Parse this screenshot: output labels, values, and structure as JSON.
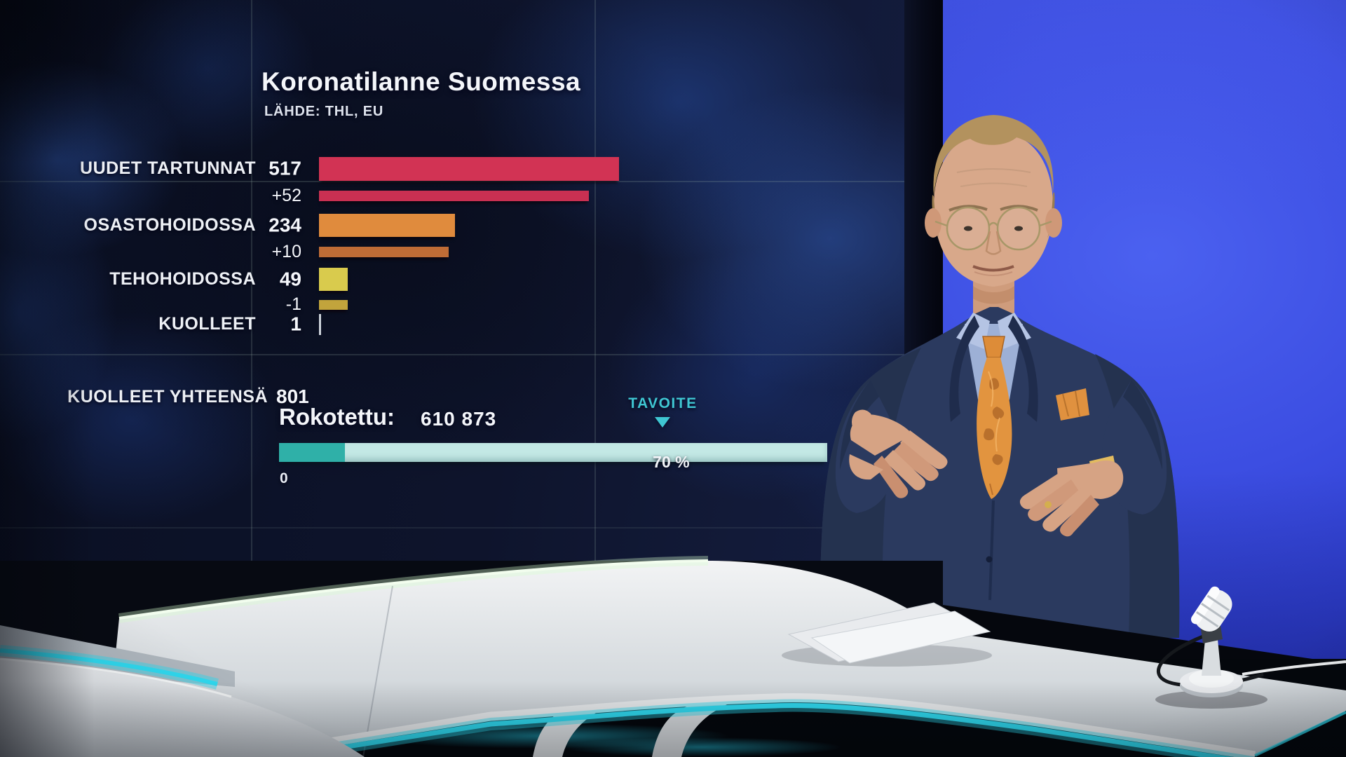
{
  "broadcast": {
    "title": "Koronatilanne Suomessa",
    "source": "LÄHDE: THL, EU",
    "deaths_total": {
      "label": "KUOLLEET YHTEENSÄ",
      "value": "801"
    },
    "vaccinated": {
      "label": "Rokotettu:",
      "value": "610 873",
      "target_label": "TAVOITE",
      "target_value": "70 %",
      "scale_min": "0"
    }
  },
  "chart_data": {
    "type": "bar",
    "orientation": "horizontal",
    "title": "Koronatilanne Suomessa",
    "source": "LÄHDE: THL, EU",
    "rows": [
      {
        "label": "UUDET TARTUNNAT",
        "display": "517",
        "value": 517,
        "bar_fraction": 1.0,
        "color": "#d23354",
        "kind": "total"
      },
      {
        "label": "",
        "display": "+52",
        "value": 52,
        "bar_fraction": 0.9,
        "color": "#c93052",
        "kind": "change"
      },
      {
        "label": "OSASTOHOIDOSSA",
        "display": "234",
        "value": 234,
        "bar_fraction": 0.453,
        "color": "#e08b3d",
        "kind": "total"
      },
      {
        "label": "",
        "display": "+10",
        "value": 10,
        "bar_fraction": 0.433,
        "color": "#bf6c36",
        "kind": "change"
      },
      {
        "label": "TEHOHOIDOSSA",
        "display": "49",
        "value": 49,
        "bar_fraction": 0.095,
        "color": "#d9cb4d",
        "kind": "total"
      },
      {
        "label": "",
        "display": "-1",
        "value": -1,
        "bar_fraction": 0.096,
        "color": "#c2a43c",
        "kind": "change"
      },
      {
        "label": "KUOLLEET",
        "display": "1",
        "value": 1,
        "bar_fraction": 0.004,
        "color": "#ccd2da",
        "kind": "total"
      }
    ],
    "totals_row": {
      "label": "KUOLLEET YHTEENSÄ",
      "value": 801
    },
    "progress": {
      "label": "Rokotettu:",
      "value": 610873,
      "display": "610 873",
      "fill_fraction": 0.12,
      "target_fraction": 0.7,
      "target_label": "TAVOITE",
      "target_display": "70 %",
      "scale_min_label": "0",
      "fill_color": "#2fb0a8",
      "track_color": "#c3e8e5",
      "accent_color": "#3fc6d2"
    }
  }
}
